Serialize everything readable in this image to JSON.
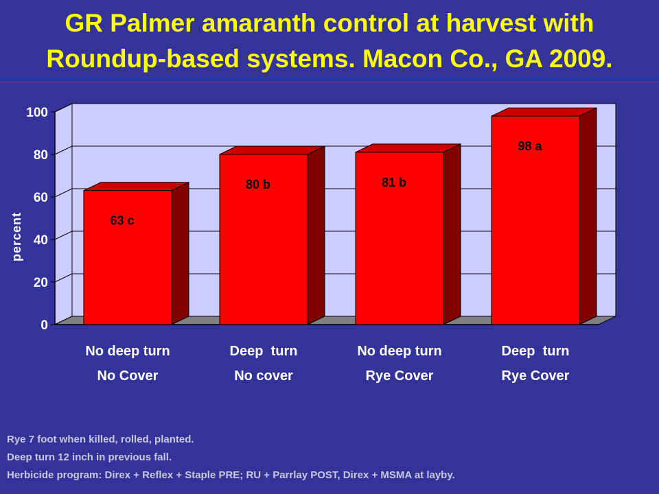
{
  "title_line1": "GR Palmer amaranth control at harvest with",
  "title_line2": "Roundup-based systems. Macon Co., GA 2009.",
  "colors": {
    "background": "#333399",
    "title": "#ffff00",
    "plot_area": "#ccccff",
    "bar_front": "#ff0000",
    "bar_side": "#800000",
    "bar_top": "#cc0000",
    "floor": "#808080"
  },
  "chart_data": {
    "type": "bar",
    "categories": [
      [
        "No deep turn",
        "No Cover"
      ],
      [
        "Deep  turn",
        "No cover"
      ],
      [
        "No deep turn",
        "Rye Cover"
      ],
      [
        "Deep  turn",
        "Rye Cover"
      ]
    ],
    "values": [
      63,
      80,
      81,
      98
    ],
    "data_labels": [
      "63 c",
      "80 b",
      "81 b",
      "98 a"
    ],
    "ylabel": "percent",
    "ylim": [
      0,
      100
    ],
    "yticks": [
      0,
      20,
      40,
      60,
      80,
      100
    ],
    "grid": true,
    "three_d": true
  },
  "notes": [
    "Rye 7 foot when killed, rolled, planted.",
    "Deep turn 12 inch in previous fall.",
    "Herbicide program: Direx + Reflex + Staple PRE; RU + Parrlay POST, Direx + MSMA at layby."
  ]
}
